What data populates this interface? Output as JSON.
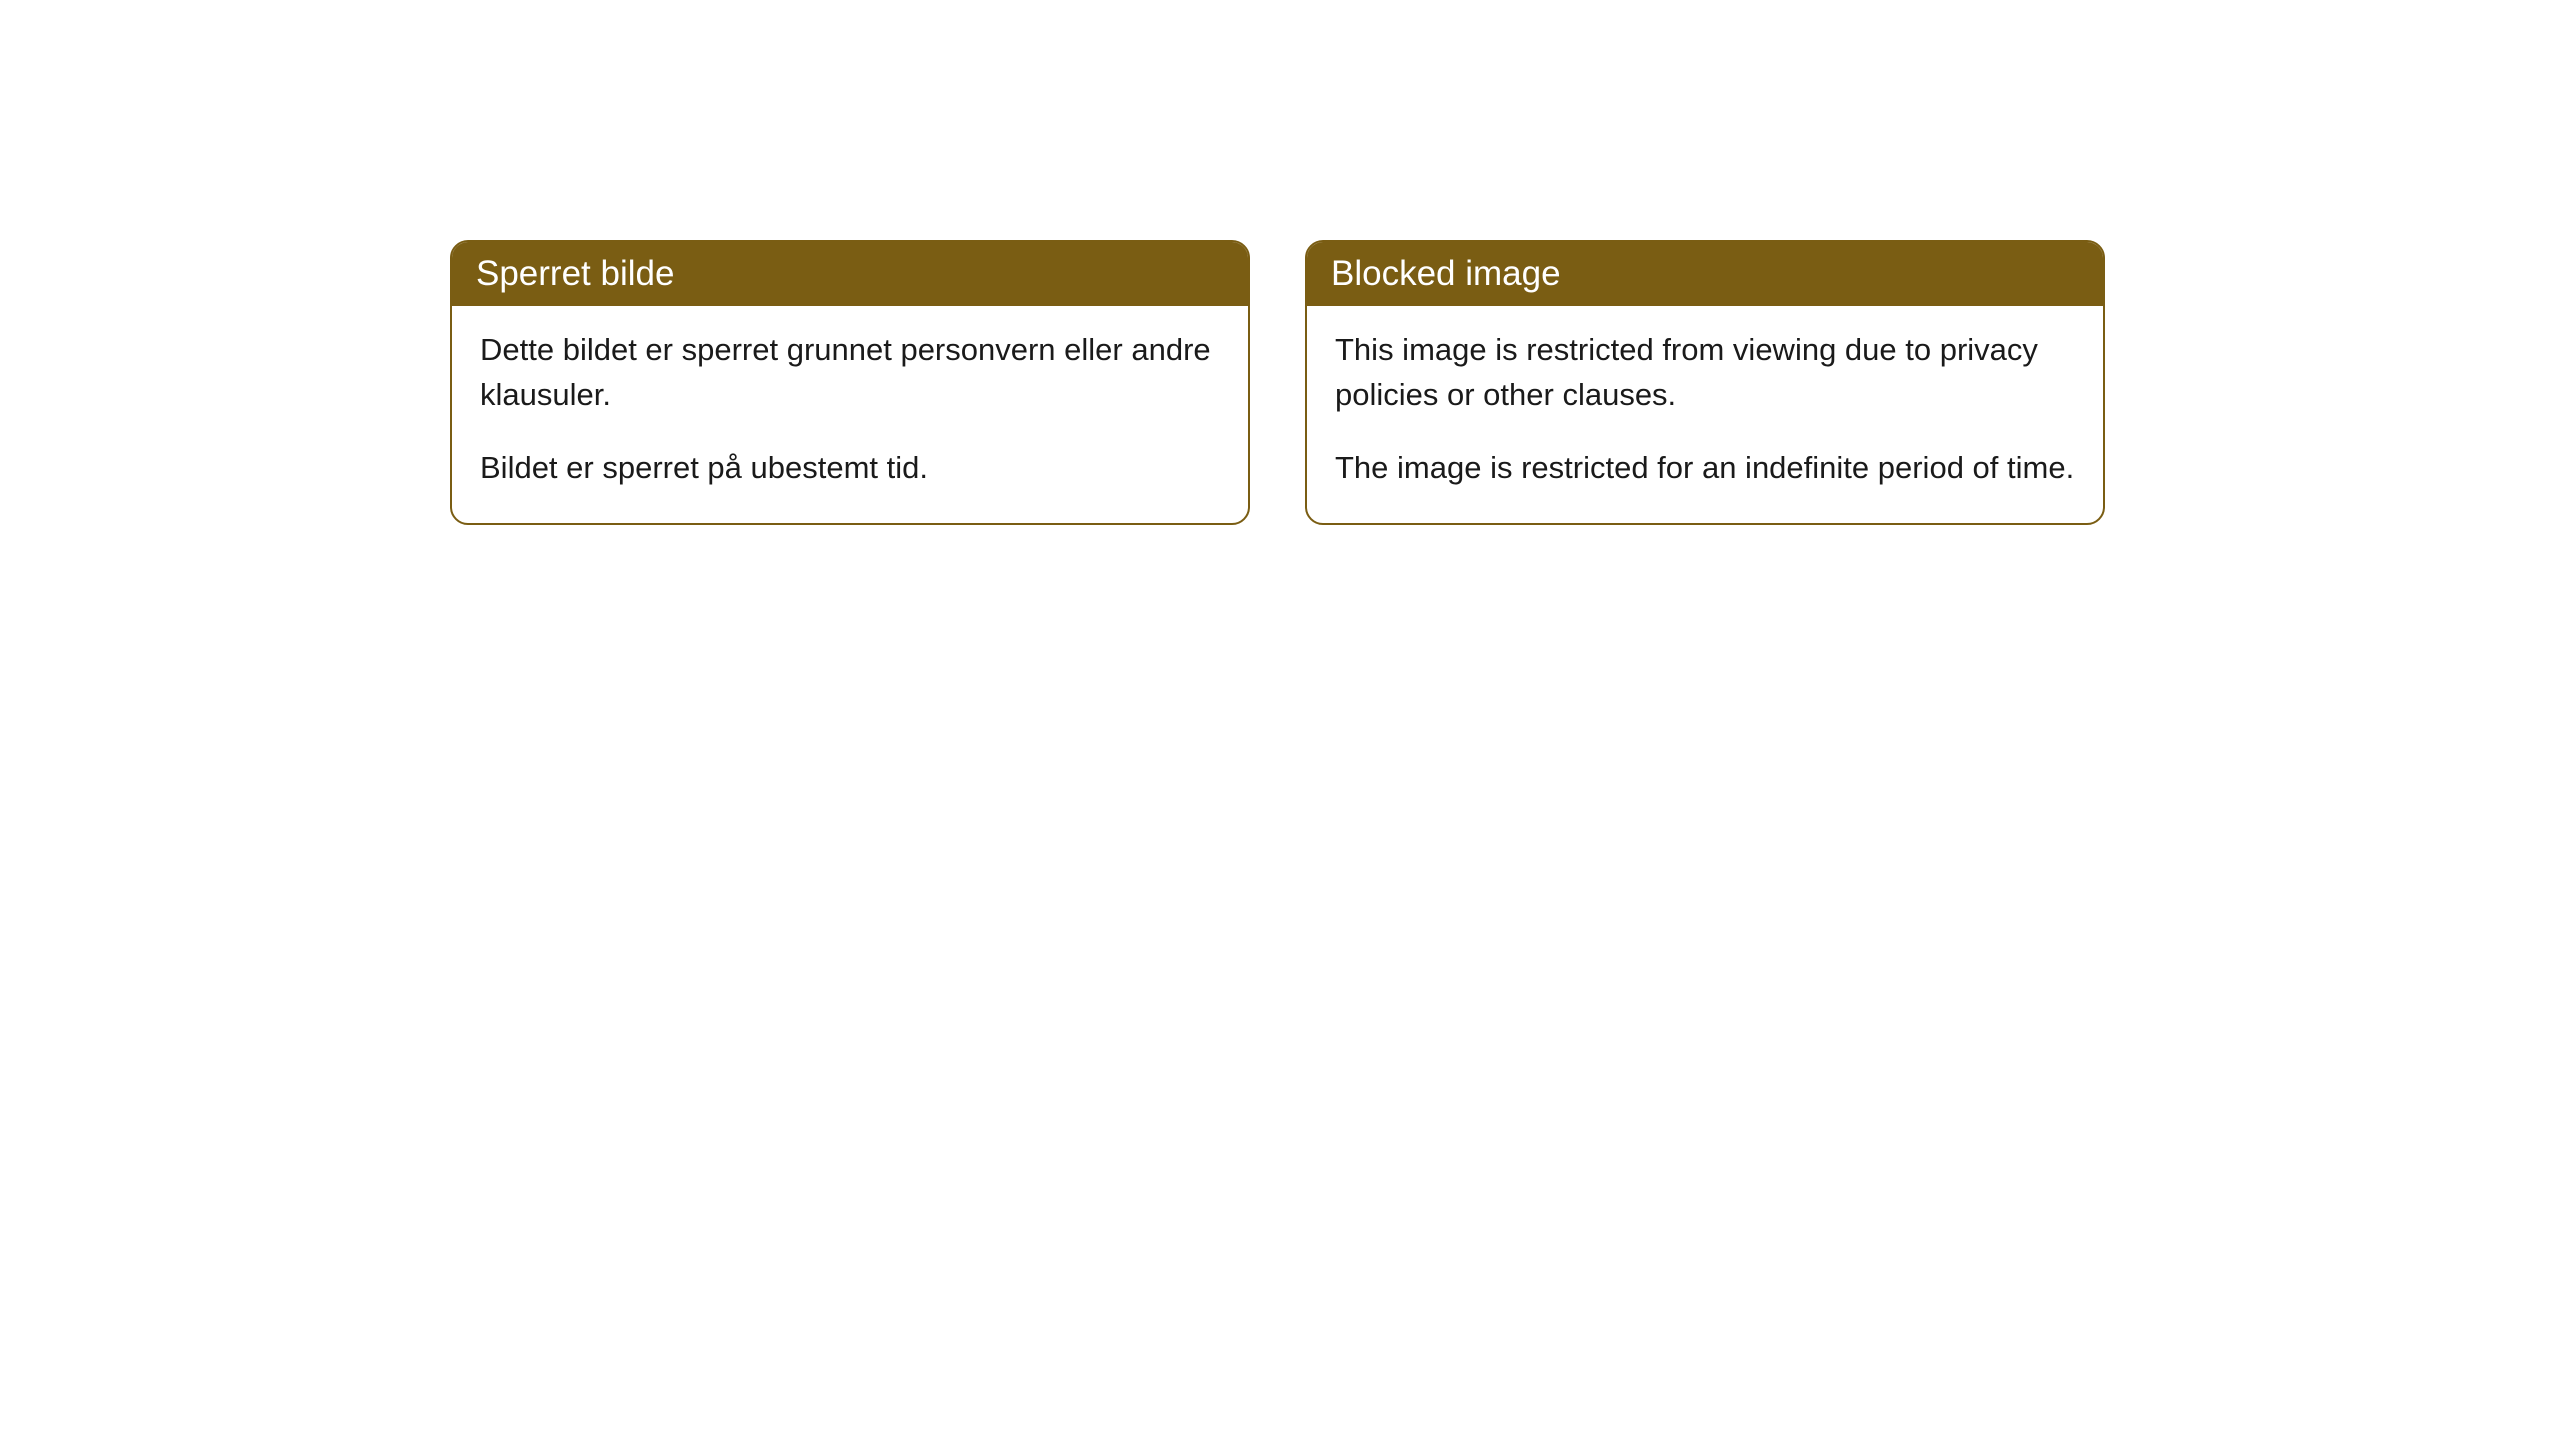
{
  "cards": [
    {
      "header": "Sperret bilde",
      "paragraphs": [
        "Dette bildet er sperret grunnet personvern eller andre klausuler.",
        "Bildet er sperret på ubestemt tid."
      ]
    },
    {
      "header": "Blocked image",
      "paragraphs": [
        "This image is restricted from viewing due to privacy policies or other clauses.",
        "The image is restricted for an indefinite period of time."
      ]
    }
  ],
  "colors": {
    "header_bg": "#7a5d13",
    "header_text": "#ffffff",
    "body_text": "#1a1a1a",
    "border": "#7a5d13",
    "page_bg": "#ffffff"
  }
}
